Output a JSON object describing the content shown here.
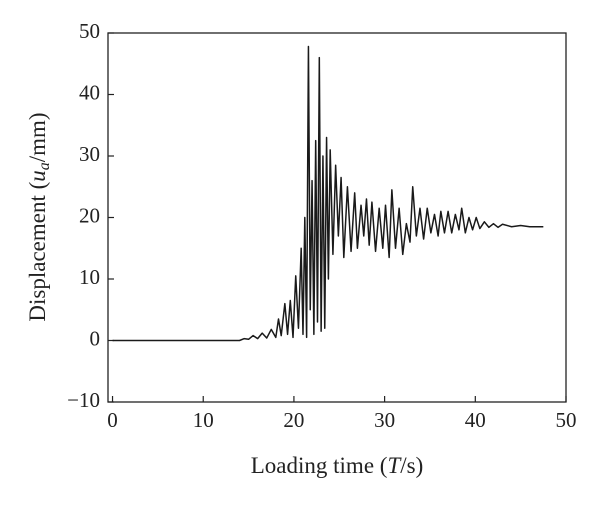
{
  "chart_data": {
    "type": "line",
    "xlabel": [
      "Loading time (",
      "T",
      "/s)"
    ],
    "ylabel": [
      "Displacement (",
      "u",
      "a",
      "/mm)"
    ],
    "xlim": [
      -0.5,
      50
    ],
    "xticks": [
      0,
      10,
      20,
      30,
      40,
      50
    ],
    "ylim": [
      -10,
      50
    ],
    "yticks": [
      {
        "value": -10,
        "label": "−10"
      },
      0,
      10,
      20,
      30,
      40,
      50
    ],
    "series": [
      {
        "color": "#1a1a1a",
        "x": [
          0,
          2,
          4,
          6,
          8,
          10,
          12,
          14,
          14.5,
          15,
          15.5,
          16,
          16.5,
          17,
          17.5,
          18,
          18.3,
          18.6,
          19,
          19.3,
          19.6,
          19.9,
          20.2,
          20.5,
          20.8,
          21,
          21.2,
          21.4,
          21.6,
          21.8,
          22,
          22.2,
          22.4,
          22.6,
          22.8,
          23,
          23.2,
          23.4,
          23.6,
          23.8,
          24,
          24.3,
          24.6,
          24.9,
          25.2,
          25.5,
          25.9,
          26.3,
          26.7,
          27,
          27.4,
          27.7,
          28,
          28.3,
          28.6,
          29,
          29.4,
          29.8,
          30.1,
          30.5,
          30.8,
          31.2,
          31.6,
          32,
          32.4,
          32.8,
          33.1,
          33.5,
          33.9,
          34.3,
          34.7,
          35.1,
          35.5,
          35.9,
          36.2,
          36.6,
          37,
          37.4,
          37.8,
          38.2,
          38.5,
          38.9,
          39.3,
          39.7,
          40.1,
          40.5,
          41,
          41.5,
          42,
          42.5,
          43,
          44,
          45,
          46,
          47.5
        ],
        "values": [
          0,
          0,
          0,
          0,
          0,
          0,
          0,
          0,
          0.3,
          0.2,
          0.8,
          0.3,
          1.2,
          0.4,
          1.8,
          0.5,
          3.5,
          0.8,
          6,
          1,
          6.5,
          0.5,
          10.5,
          2,
          15,
          1,
          20,
          0.5,
          47.8,
          5,
          26,
          1,
          32.5,
          3,
          46,
          1.5,
          30,
          2,
          33,
          10,
          31,
          14,
          28.5,
          17,
          26.5,
          13.5,
          25,
          14.5,
          24,
          15,
          22,
          17,
          23,
          15.5,
          22.5,
          14.5,
          21.5,
          15,
          22,
          13.5,
          24.5,
          15,
          21.5,
          14,
          19,
          16,
          25,
          17,
          21.5,
          16.5,
          21.5,
          17.5,
          20.5,
          17,
          21,
          17.5,
          21,
          17.5,
          20.5,
          18,
          21.5,
          17.5,
          20,
          18,
          20,
          18.2,
          19.3,
          18.4,
          19,
          18.4,
          18.9,
          18.5,
          18.7,
          18.5,
          18.5
        ]
      }
    ]
  }
}
